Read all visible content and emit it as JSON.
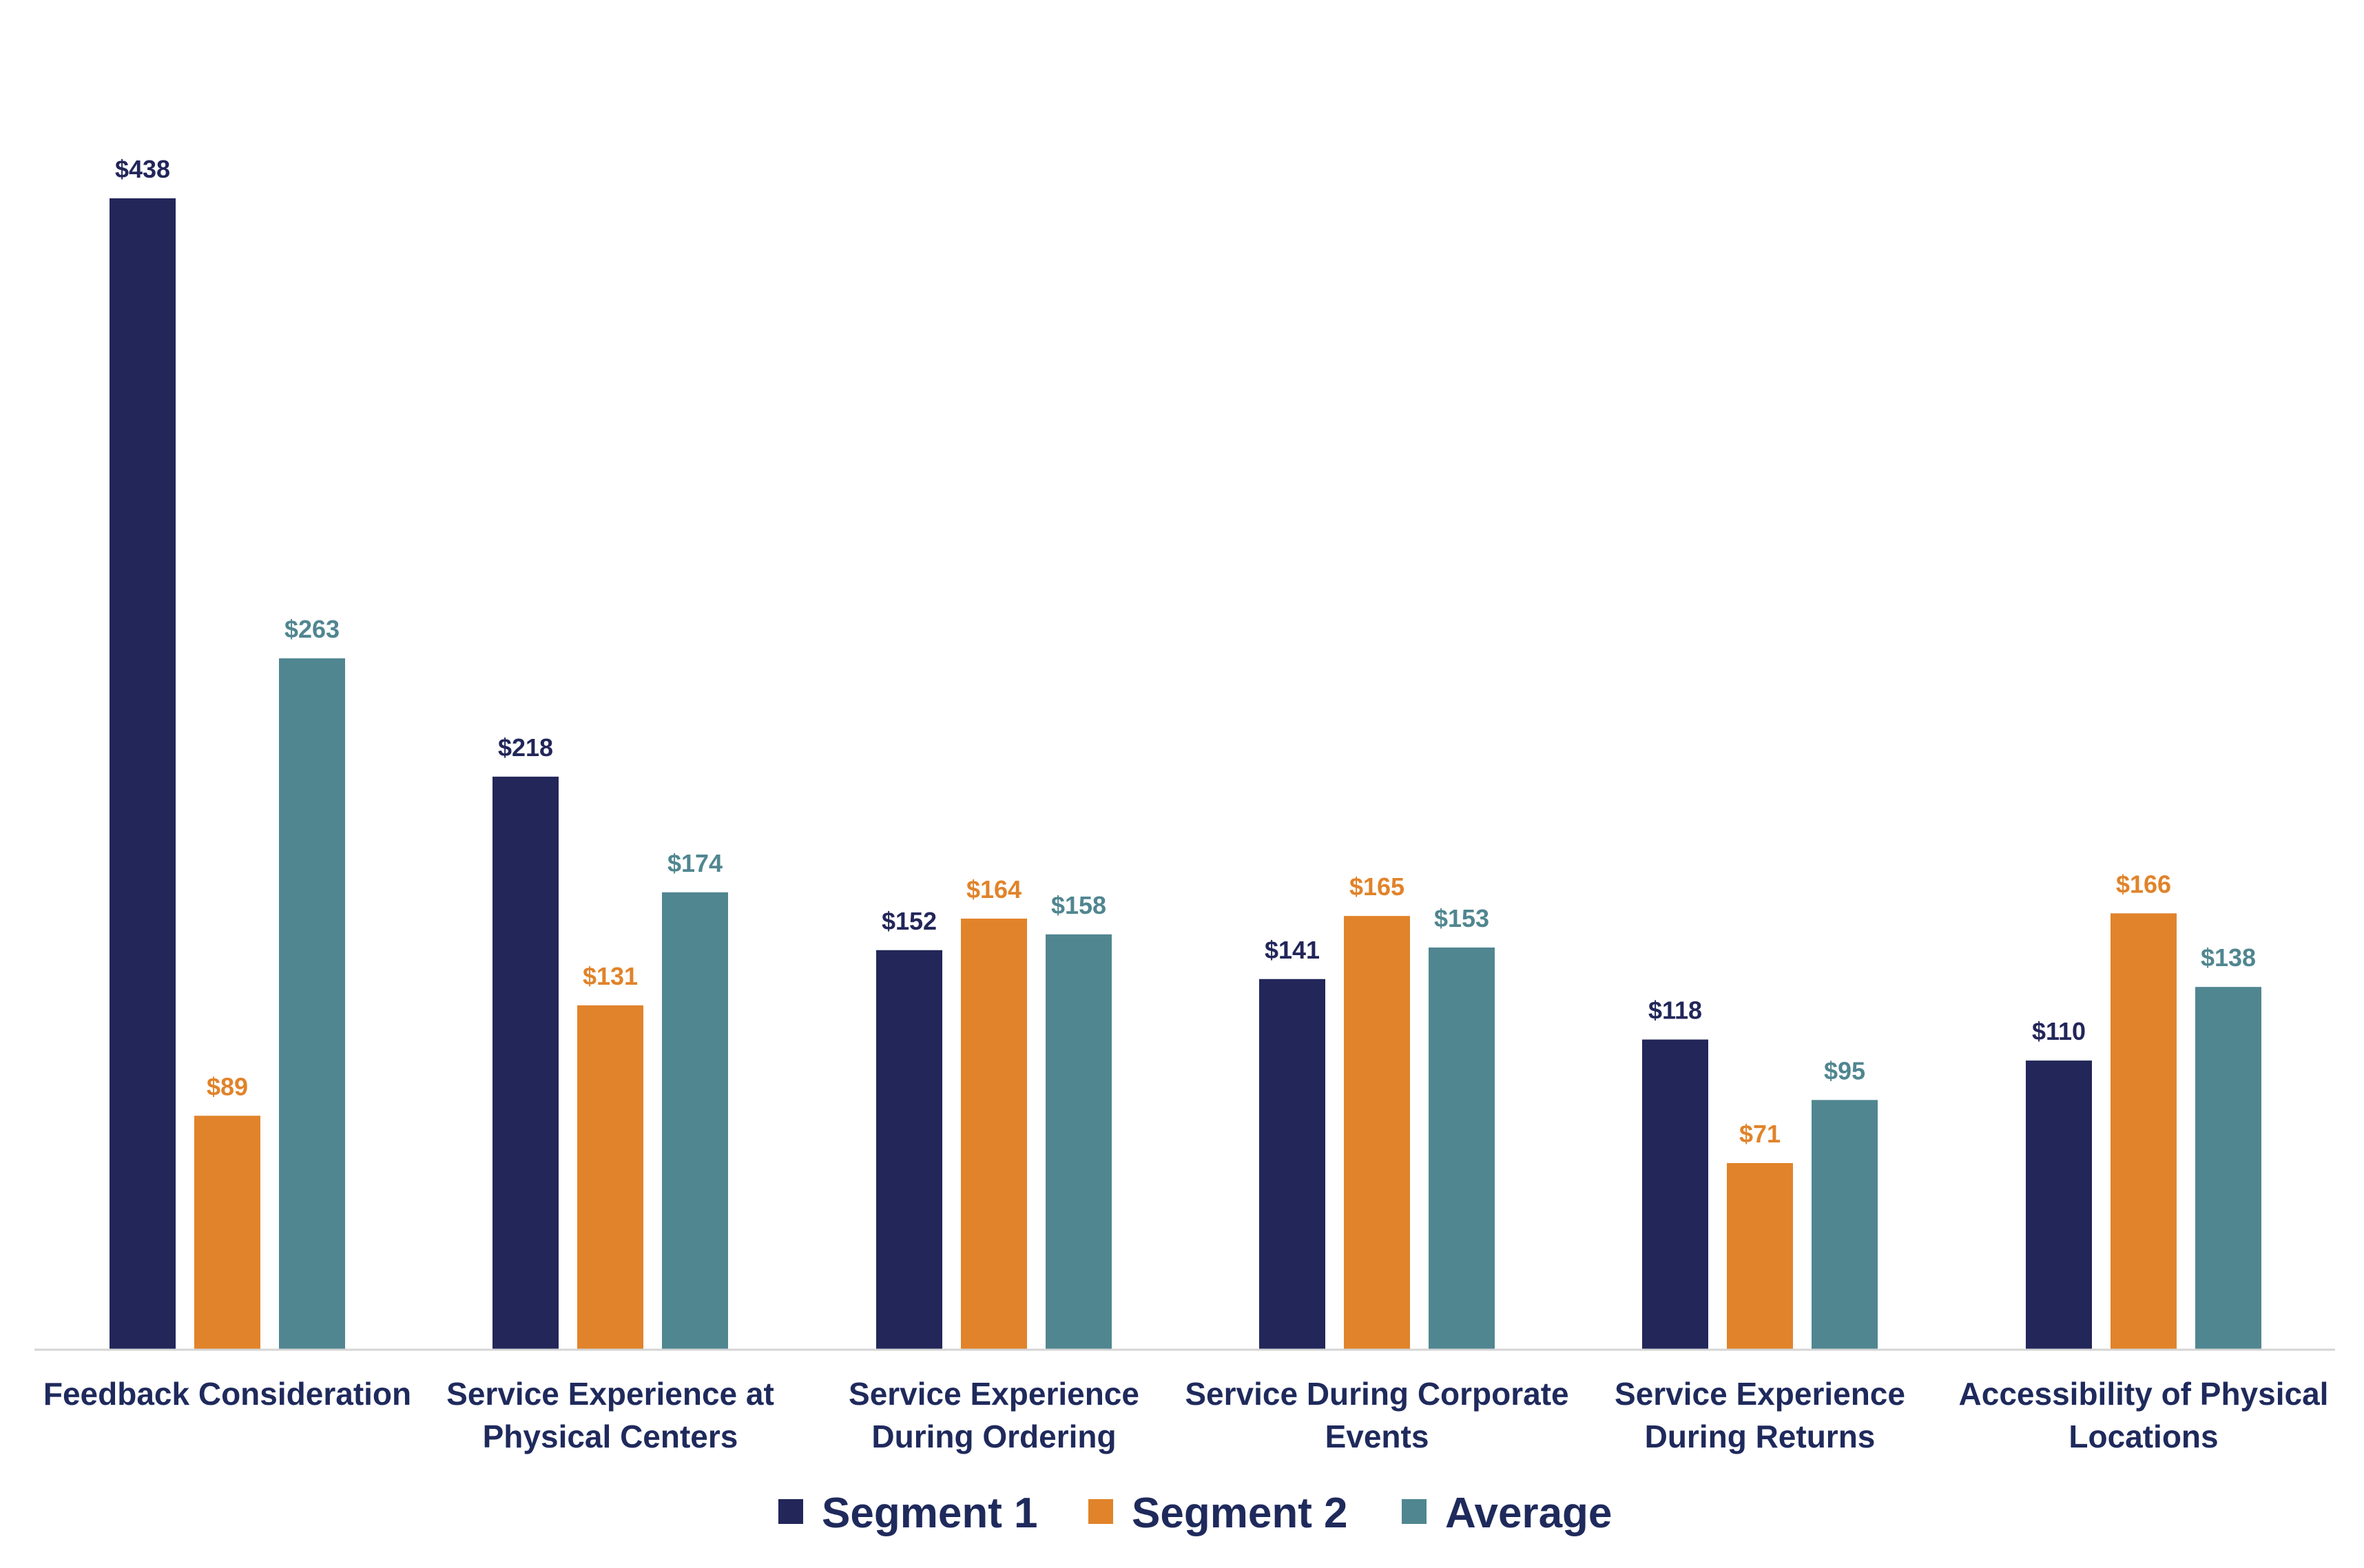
{
  "chart_data": {
    "type": "bar",
    "categories": [
      [
        "Feedback Consideration"
      ],
      [
        "Service Experience at",
        "Physical Centers"
      ],
      [
        "Service Experience",
        "During Ordering"
      ],
      [
        "Service During Corporate",
        "Events"
      ],
      [
        "Service Experience",
        "During Returns"
      ],
      [
        "Accessibility of Physical",
        "Locations"
      ]
    ],
    "series": [
      {
        "name": "Segment 1",
        "color": "#222659",
        "values": [
          438,
          218,
          152,
          141,
          118,
          110
        ],
        "labels": [
          "$438",
          "$218",
          "$152",
          "$141",
          "$118",
          "$110"
        ]
      },
      {
        "name": "Segment 2",
        "color": "#e1832a",
        "values": [
          89,
          131,
          164,
          165,
          71,
          166
        ],
        "labels": [
          "$89",
          "$131",
          "$164",
          "$165",
          "$71",
          "$166"
        ]
      },
      {
        "name": "Average",
        "color": "#508690",
        "values": [
          263,
          174,
          158,
          153,
          95,
          138
        ],
        "labels": [
          "$263",
          "$174",
          "$158",
          "$153",
          "$95",
          "$138"
        ]
      }
    ],
    "ylim": [
      0,
      438
    ],
    "grid": false,
    "legend_position": "bottom",
    "category_label_color": "#1f2a5c"
  }
}
